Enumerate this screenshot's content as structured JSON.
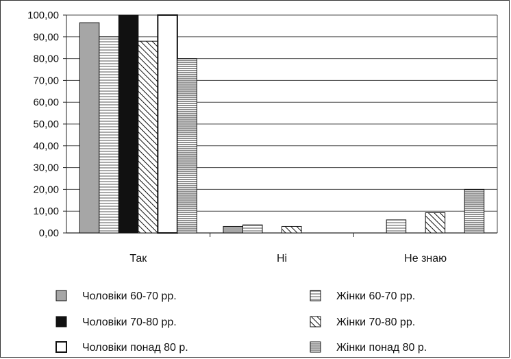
{
  "chart_data": {
    "type": "bar",
    "title": "",
    "xlabel": "",
    "ylabel": "",
    "ylim": [
      0,
      100
    ],
    "ytick_step": 10,
    "ytick_labels": [
      "0,00",
      "10,00",
      "20,00",
      "30,00",
      "40,00",
      "50,00",
      "60,00",
      "70,00",
      "80,00",
      "90,00",
      "100,00"
    ],
    "grid": true,
    "legend_position": "bottom",
    "categories": [
      "Так",
      "Ні",
      "Не знаю"
    ],
    "series": [
      {
        "name": "Чоловіки 60-70  рр.",
        "pattern": "gray-solid",
        "values": [
          96.5,
          3.0,
          0.0
        ]
      },
      {
        "name": "Жінки 60-70  рр.",
        "pattern": "horizontal-lines",
        "values": [
          90.0,
          3.7,
          6.0
        ]
      },
      {
        "name": "Чоловіки 70-80  рр.",
        "pattern": "black-solid",
        "values": [
          100.0,
          0.0,
          0.0
        ]
      },
      {
        "name": "Жінки 70-80  рр.",
        "pattern": "diagonal-hatch",
        "values": [
          88.0,
          3.0,
          9.3
        ]
      },
      {
        "name": "Чоловіки понад 80 р.",
        "pattern": "white-solid",
        "values": [
          100.0,
          0.0,
          0.0
        ]
      },
      {
        "name": "Жінки понад 80  р.",
        "pattern": "dense-horizontal-lines",
        "values": [
          80.0,
          0.0,
          20.0
        ]
      }
    ],
    "colors": {
      "gray": "#a6a6a6",
      "black": "#111111",
      "white": "#ffffff",
      "line": "#222222"
    }
  }
}
